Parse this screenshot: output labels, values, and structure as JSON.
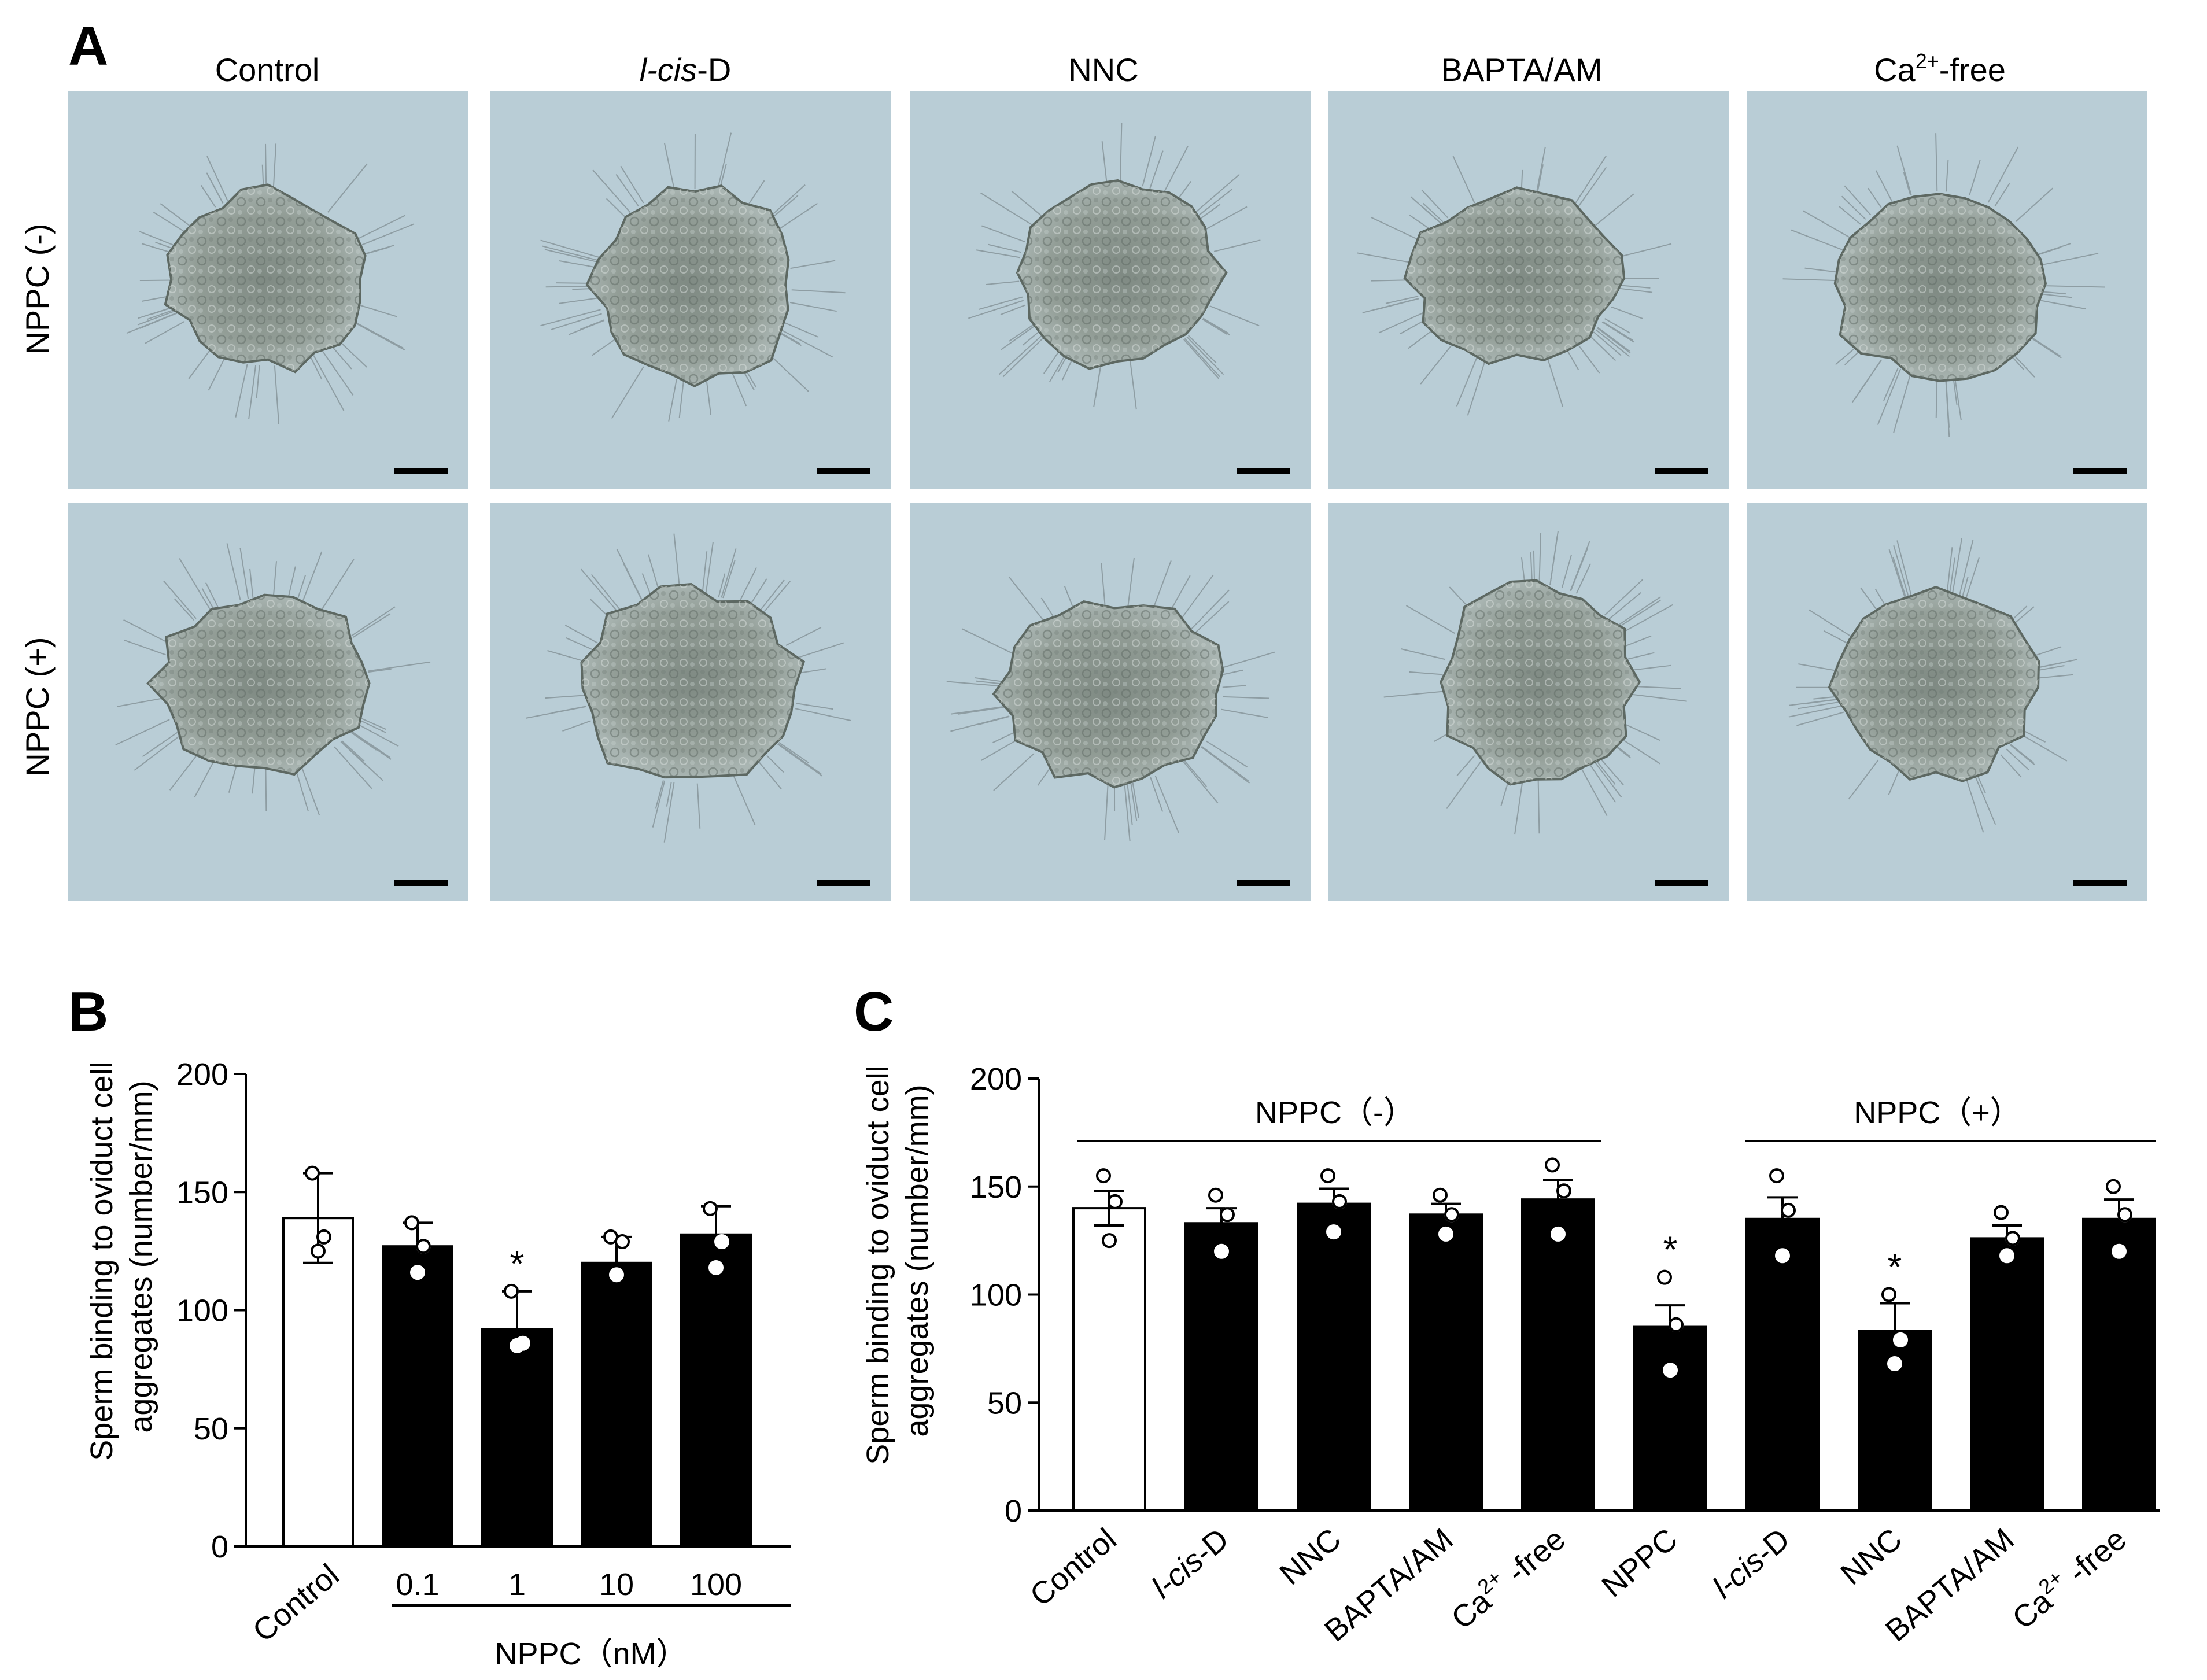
{
  "panel_a": {
    "letter": "A",
    "columns": [
      {
        "prefix": "",
        "italic": "",
        "suffix": "Control"
      },
      {
        "prefix": "",
        "italic": "l-cis",
        "suffix": "-D"
      },
      {
        "prefix": "",
        "italic": "",
        "suffix": "NNC"
      },
      {
        "prefix": "",
        "italic": "",
        "suffix": "BAPTA/AM"
      },
      {
        "prefix": "Ca",
        "sup": "2+",
        "italic": "",
        "suffix": "-free"
      }
    ],
    "rows": [
      "NPPC (-)",
      "NPPC (+)"
    ],
    "image_description_colors": {
      "background": "#b9cdd6",
      "aggregate": "#8f9a93",
      "scale_bar": "#000000"
    }
  },
  "panel_b": {
    "letter": "B",
    "ylabel_line1": "Sperm binding to oviduct cell",
    "ylabel_line2": "aggregates (number/mm)",
    "group_label": "NPPC（nM）"
  },
  "panel_c": {
    "letter": "C",
    "ylabel_line1": "Sperm binding to oviduct cell",
    "ylabel_line2": "aggregates (number/mm)",
    "bracket_left": "NPPC（-）",
    "bracket_right": "NPPC（+）"
  },
  "chart_data": [
    {
      "type": "bar",
      "panel": "B",
      "categories": [
        "Control",
        "0.1",
        "1",
        "10",
        "100"
      ],
      "values": [
        139,
        127,
        92,
        120,
        132
      ],
      "errors": [
        19,
        10,
        16,
        11,
        12
      ],
      "points": [
        [
          158,
          131,
          125
        ],
        [
          137,
          127,
          116
        ],
        [
          108,
          86,
          85
        ],
        [
          131,
          129,
          115
        ],
        [
          143,
          129,
          118
        ]
      ],
      "significant": [
        false,
        false,
        true,
        false,
        false
      ],
      "fill": [
        "#ffffff",
        "#000000",
        "#000000",
        "#000000",
        "#000000"
      ],
      "ylim": [
        0,
        200
      ],
      "yticks": [
        0,
        50,
        100,
        150,
        200
      ],
      "xlabel": "NPPC（nM）",
      "ylabel": "Sperm binding to oviduct cell aggregates (number/mm)"
    },
    {
      "type": "bar",
      "panel": "C",
      "categories": [
        "Control",
        "l-cis-D",
        "NNC",
        "BAPTA/AM",
        "Ca2+ -free",
        "NPPC",
        "l-cis-D",
        "NNC",
        "BAPTA/AM",
        "Ca2+ -free"
      ],
      "values": [
        140,
        133,
        142,
        137,
        144,
        85,
        135,
        83,
        126,
        135
      ],
      "errors": [
        8,
        7,
        7,
        5,
        9,
        10,
        10,
        13,
        6,
        9
      ],
      "points": [
        [
          155,
          143,
          125
        ],
        [
          146,
          137,
          120
        ],
        [
          155,
          143,
          129
        ],
        [
          146,
          137,
          128
        ],
        [
          160,
          148,
          128
        ],
        [
          108,
          86,
          65
        ],
        [
          155,
          139,
          118
        ],
        [
          100,
          79,
          68
        ],
        [
          138,
          126,
          118
        ],
        [
          150,
          137,
          120
        ]
      ],
      "significant": [
        false,
        false,
        false,
        false,
        false,
        true,
        false,
        true,
        false,
        false
      ],
      "fill": [
        "#ffffff",
        "#000000",
        "#000000",
        "#000000",
        "#000000",
        "#000000",
        "#000000",
        "#000000",
        "#000000",
        "#000000"
      ],
      "ylim": [
        0,
        200
      ],
      "yticks": [
        0,
        50,
        100,
        150,
        200
      ],
      "ylabel": "Sperm binding to oviduct cell aggregates (number/mm)",
      "brackets": [
        "NPPC（-）",
        "NPPC（+）"
      ]
    }
  ]
}
